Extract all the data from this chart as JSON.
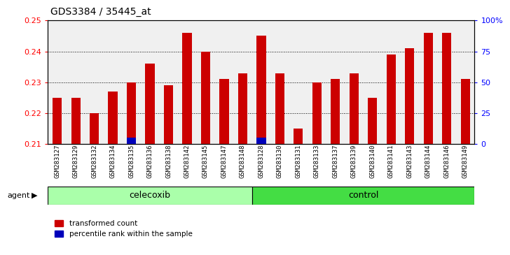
{
  "title": "GDS3384 / 35445_at",
  "samples": [
    "GSM283127",
    "GSM283129",
    "GSM283132",
    "GSM283134",
    "GSM283135",
    "GSM283136",
    "GSM283138",
    "GSM283142",
    "GSM283145",
    "GSM283147",
    "GSM283148",
    "GSM283128",
    "GSM283130",
    "GSM283131",
    "GSM283133",
    "GSM283137",
    "GSM283139",
    "GSM283140",
    "GSM283141",
    "GSM283143",
    "GSM283144",
    "GSM283146",
    "GSM283149"
  ],
  "red_values": [
    0.225,
    0.225,
    0.22,
    0.227,
    0.23,
    0.236,
    0.229,
    0.246,
    0.24,
    0.231,
    0.233,
    0.245,
    0.233,
    0.215,
    0.23,
    0.231,
    0.233,
    0.225,
    0.239,
    0.241,
    0.246,
    0.246,
    0.231
  ],
  "blue_values": [
    0,
    0,
    0,
    0,
    5,
    0,
    0,
    0,
    0,
    0,
    0,
    5,
    0,
    0,
    0,
    0,
    0,
    0,
    0,
    0,
    0,
    0,
    0
  ],
  "celecoxib_count": 11,
  "control_count": 12,
  "ylim_left": [
    0.21,
    0.25
  ],
  "ylim_right": [
    0,
    100
  ],
  "yticks_left": [
    0.21,
    0.22,
    0.23,
    0.24,
    0.25
  ],
  "yticks_right": [
    0,
    25,
    50,
    75,
    100
  ],
  "ytick_labels_right": [
    "0",
    "25",
    "50",
    "75",
    "100%"
  ],
  "bar_color_red": "#cc0000",
  "bar_color_blue": "#0000bb",
  "celecoxib_color": "#aaffaa",
  "control_color": "#44dd44",
  "agent_label": "agent",
  "celecoxib_label": "celecoxib",
  "control_label": "control",
  "legend_red": "transformed count",
  "legend_blue": "percentile rank within the sample",
  "bar_width": 0.5,
  "plot_bg": "#f0f0f0"
}
